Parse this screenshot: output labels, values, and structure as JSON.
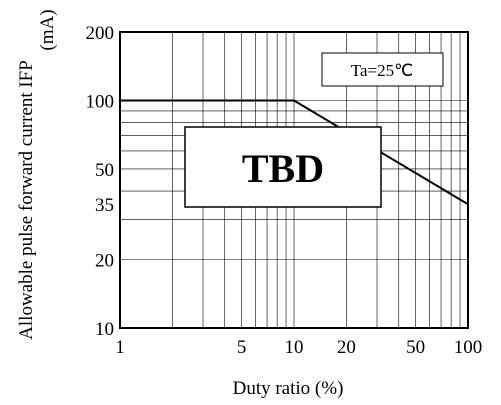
{
  "chart_data": {
    "type": "line",
    "title": "",
    "xlabel": "Duty ratio (%)",
    "ylabel_line1": "Allowable pulse forward current IFP",
    "ylabel_line2": "(mA)",
    "x_scale": "log",
    "y_scale": "log",
    "xlim": [
      1,
      100
    ],
    "ylim": [
      10,
      200
    ],
    "x_ticks": [
      1,
      5,
      10,
      20,
      50,
      100
    ],
    "x_tick_labels": [
      "1",
      "5",
      "10",
      "20",
      "50",
      "100"
    ],
    "y_ticks": [
      10,
      20,
      35,
      50,
      100,
      200
    ],
    "y_tick_labels": [
      "10",
      "20",
      "35",
      "50",
      "100",
      "200"
    ],
    "grid": true,
    "series": [
      {
        "x": [
          1,
          10,
          100
        ],
        "y": [
          100,
          100,
          35
        ]
      }
    ],
    "annotation": "Ta=25℃",
    "overlay_label": "TBD"
  }
}
